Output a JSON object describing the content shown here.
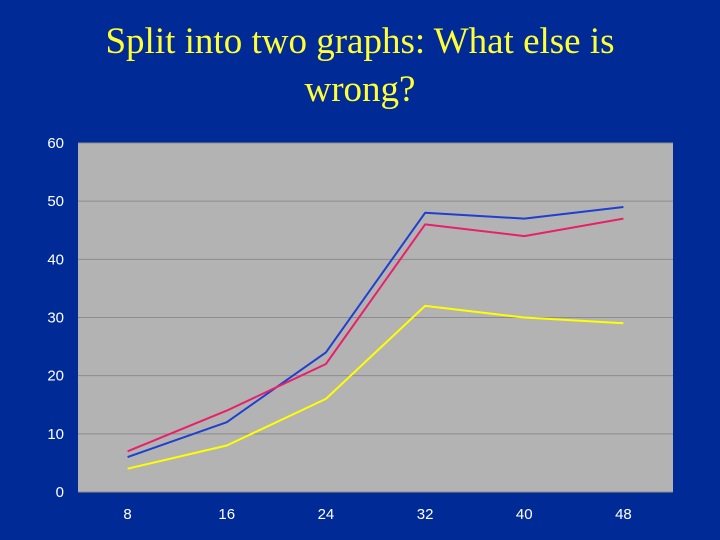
{
  "slide": {
    "title_line1": "Split into two graphs: What else is",
    "title_line2": "wrong?"
  },
  "colors": {
    "background": "#002b96",
    "plot_area": "#b3b3b3",
    "title": "#ffff33",
    "grid": "#8c8c8c"
  },
  "chart_data": {
    "type": "line",
    "x": [
      8,
      16,
      24,
      32,
      40,
      48
    ],
    "xticks": [
      "8",
      "16",
      "24",
      "32",
      "40",
      "48"
    ],
    "ylim": [
      0,
      60
    ],
    "yticks": [
      0,
      10,
      20,
      30,
      40,
      50,
      60
    ],
    "grid": true,
    "legend": "none",
    "series": [
      {
        "color": "#1f3fd0",
        "values": [
          6,
          12,
          24,
          48,
          47,
          49
        ]
      },
      {
        "color": "#e8206a",
        "values": [
          7,
          14,
          22,
          46,
          44,
          47
        ]
      },
      {
        "color": "#ffff00",
        "values": [
          4,
          8,
          16,
          32,
          30,
          29
        ]
      }
    ]
  }
}
